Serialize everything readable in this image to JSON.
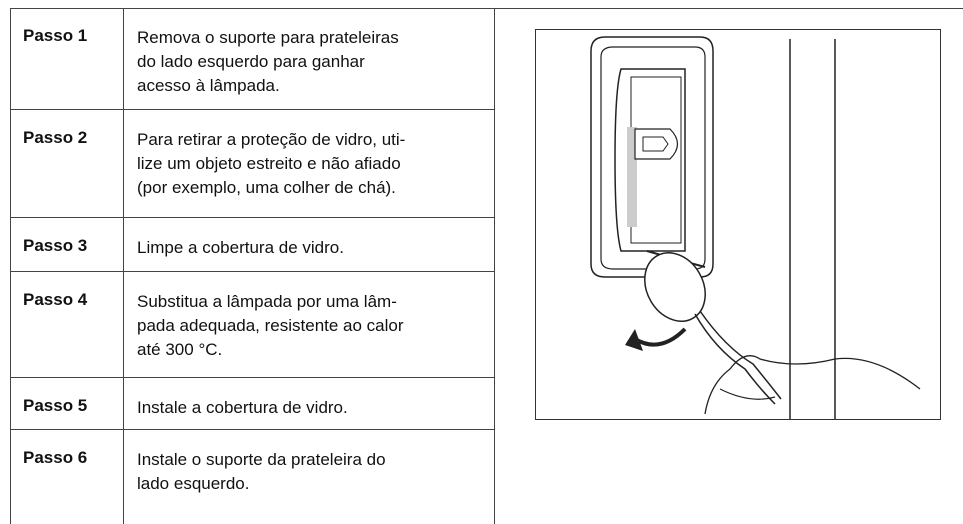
{
  "table": {
    "rows": [
      {
        "step": "Passo 1",
        "text": [
          "Remova o suporte para prateleiras",
          "do lado esquerdo para ganhar",
          "acesso à lâmpada."
        ]
      },
      {
        "step": "Passo 2",
        "text": [
          "Para retirar a proteção de vidro, uti-",
          "lize um objeto estreito e não afiado",
          "(por exemplo, uma colher de chá)."
        ]
      },
      {
        "step": "Passo 3",
        "text": [
          "Limpe a cobertura de vidro."
        ]
      },
      {
        "step": "Passo 4",
        "text": [
          "Substitua a lâmpada por uma lâm-",
          "pada adequada, resistente ao calor",
          "até 300 °C."
        ]
      },
      {
        "step": "Passo 5",
        "text": [
          "Instale a cobertura de vidro."
        ]
      },
      {
        "step": "Passo 6",
        "text": [
          "Instale o suporte da prateleira do",
          "lado esquerdo."
        ]
      }
    ]
  }
}
